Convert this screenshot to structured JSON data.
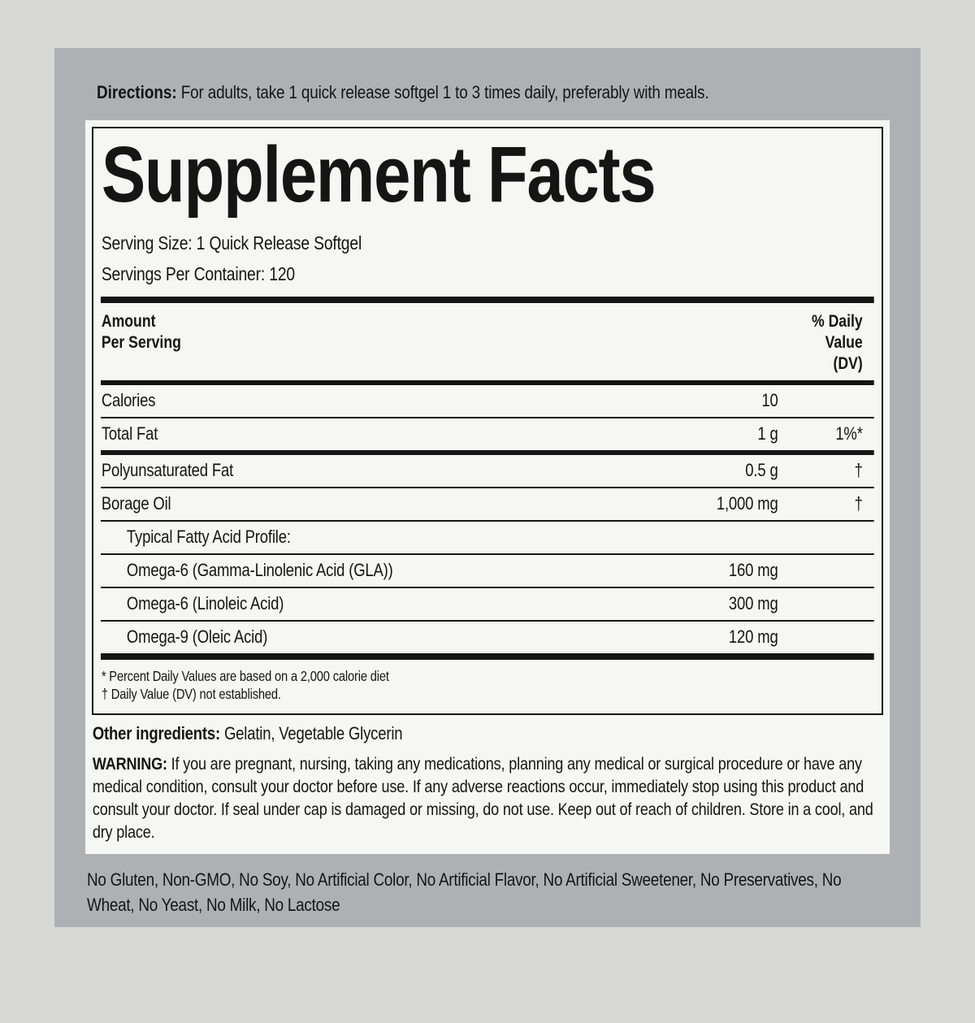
{
  "directions": {
    "label": "Directions:",
    "text": " For adults, take 1 quick release softgel 1 to 3 times daily, preferably with meals."
  },
  "facts": {
    "title": "Supplement Facts",
    "serving_size": "Serving Size: 1 Quick Release Softgel",
    "servings_per_container": "Servings Per Container: 120",
    "header": {
      "amount_line1": "Amount",
      "amount_line2": "Per Serving",
      "dv_line1": "% Daily",
      "dv_line2": "Value",
      "dv_line3": "(DV)"
    },
    "rows": [
      {
        "name": "Calories",
        "amount": "10",
        "dv": ""
      },
      {
        "name": "Total Fat",
        "amount": "1 g",
        "dv": "1%*"
      },
      {
        "name": "Polyunsaturated Fat",
        "amount": "0.5 g",
        "dv": "†"
      },
      {
        "name": "Borage Oil",
        "amount": "1,000 mg",
        "dv": "†"
      },
      {
        "name": "Typical Fatty Acid Profile:",
        "amount": "",
        "dv": ""
      },
      {
        "name": "Omega-6 (Gamma-Linolenic Acid (GLA))",
        "amount": "160 mg",
        "dv": ""
      },
      {
        "name": "Omega-6 (Linoleic Acid)",
        "amount": "300 mg",
        "dv": ""
      },
      {
        "name": "Omega-9 (Oleic Acid)",
        "amount": "120 mg",
        "dv": ""
      }
    ],
    "footnote_percent": "* Percent Daily Values are based on a 2,000 calorie diet",
    "footnote_dagger": "† Daily Value (DV) not established."
  },
  "other_ingredients": {
    "label": "Other ingredients:",
    "text": " Gelatin, Vegetable Glycerin"
  },
  "warning": {
    "label": "WARNING:",
    "text": " If you are pregnant, nursing, taking any medications, planning any medical or surgical procedure or have any medical condition, consult your doctor before use. If any adverse reactions occur, immediately stop using this product and consult your doctor. If seal under cap is damaged or missing, do not use. Keep out of reach of children. Store in a cool, and dry place."
  },
  "claims": {
    "text": "No Gluten, Non-GMO, No Soy, No Artificial Color, No Artificial Flavor, No Artificial Sweetener, No Preservatives, No Wheat, No Yeast, No Milk, No Lactose"
  },
  "colors": {
    "frame_background": "#d8d8d6",
    "label_background": "#aeb1b4",
    "panel_background": "#f6f6f2",
    "text": "#151515"
  }
}
